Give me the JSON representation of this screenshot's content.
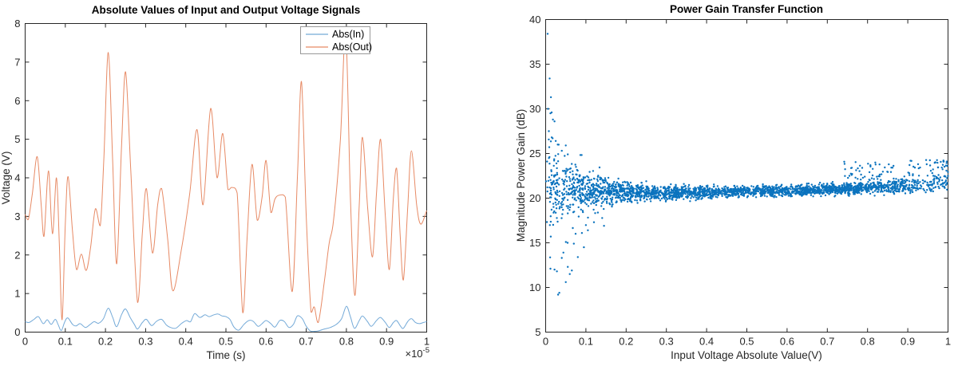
{
  "figure": {
    "background": "#ffffff",
    "axis_color": "#262626",
    "legend_border_color": "#999999"
  },
  "chart_data": [
    {
      "type": "line",
      "title": "Absolute Values of Input and Output Voltage Signals",
      "xlabel": "Time (s)",
      "ylabel": "Voltage (V)",
      "x_multiplier_base": "×10",
      "x_multiplier_exp": "-5",
      "xlim": [
        0,
        1
      ],
      "ylim": [
        0,
        8
      ],
      "x_ticks": {
        "values": [
          0,
          0.1,
          0.2,
          0.3,
          0.4,
          0.5,
          0.6,
          0.7,
          0.8,
          0.9,
          1
        ],
        "labels": [
          "0",
          "0.1",
          "0.2",
          "0.3",
          "0.4",
          "0.5",
          "0.6",
          "0.7",
          "0.8",
          "0.9",
          "1"
        ]
      },
      "y_ticks": {
        "values": [
          0,
          1,
          2,
          3,
          4,
          5,
          6,
          7,
          8
        ],
        "labels": [
          "0",
          "1",
          "2",
          "3",
          "4",
          "5",
          "6",
          "7",
          "8"
        ]
      },
      "grid": false,
      "legend": {
        "position": "northeast",
        "entries": [
          "Abs(In)",
          "Abs(Out)"
        ]
      },
      "series": [
        {
          "name": "Abs(In)",
          "color": "#74AAD8",
          "points": [
            [
              0,
              0.27
            ],
            [
              0.01,
              0.25
            ],
            [
              0.022,
              0.33
            ],
            [
              0.033,
              0.4
            ],
            [
              0.045,
              0.22
            ],
            [
              0.055,
              0.32
            ],
            [
              0.065,
              0.2
            ],
            [
              0.075,
              0.33
            ],
            [
              0.082,
              0.2
            ],
            [
              0.09,
              0.04
            ],
            [
              0.098,
              0.25
            ],
            [
              0.106,
              0.37
            ],
            [
              0.118,
              0.2
            ],
            [
              0.127,
              0.16
            ],
            [
              0.137,
              0.22
            ],
            [
              0.15,
              0.12
            ],
            [
              0.162,
              0.2
            ],
            [
              0.172,
              0.27
            ],
            [
              0.183,
              0.23
            ],
            [
              0.195,
              0.35
            ],
            [
              0.207,
              0.62
            ],
            [
              0.218,
              0.38
            ],
            [
              0.228,
              0.14
            ],
            [
              0.24,
              0.45
            ],
            [
              0.25,
              0.6
            ],
            [
              0.262,
              0.37
            ],
            [
              0.272,
              0.2
            ],
            [
              0.28,
              0.08
            ],
            [
              0.292,
              0.25
            ],
            [
              0.302,
              0.33
            ],
            [
              0.315,
              0.17
            ],
            [
              0.327,
              0.28
            ],
            [
              0.34,
              0.33
            ],
            [
              0.352,
              0.18
            ],
            [
              0.362,
              0.12
            ],
            [
              0.375,
              0.1
            ],
            [
              0.39,
              0.23
            ],
            [
              0.402,
              0.3
            ],
            [
              0.412,
              0.27
            ],
            [
              0.422,
              0.48
            ],
            [
              0.435,
              0.38
            ],
            [
              0.448,
              0.45
            ],
            [
              0.458,
              0.4
            ],
            [
              0.468,
              0.44
            ],
            [
              0.48,
              0.47
            ],
            [
              0.49,
              0.42
            ],
            [
              0.5,
              0.4
            ],
            [
              0.51,
              0.33
            ],
            [
              0.52,
              0.13
            ],
            [
              0.532,
              0.05
            ],
            [
              0.545,
              0.2
            ],
            [
              0.557,
              0.3
            ],
            [
              0.568,
              0.28
            ],
            [
              0.58,
              0.15
            ],
            [
              0.59,
              0.22
            ],
            [
              0.6,
              0.3
            ],
            [
              0.612,
              0.22
            ],
            [
              0.622,
              0.13
            ],
            [
              0.634,
              0.3
            ],
            [
              0.645,
              0.28
            ],
            [
              0.657,
              0.12
            ],
            [
              0.668,
              0.2
            ],
            [
              0.678,
              0.42
            ],
            [
              0.69,
              0.35
            ],
            [
              0.7,
              0.15
            ],
            [
              0.71,
              0.03
            ],
            [
              0.72,
              0.02
            ],
            [
              0.73,
              0.03
            ],
            [
              0.745,
              0.08
            ],
            [
              0.76,
              0.12
            ],
            [
              0.775,
              0.2
            ],
            [
              0.788,
              0.35
            ],
            [
              0.8,
              0.67
            ],
            [
              0.81,
              0.4
            ],
            [
              0.82,
              0.1
            ],
            [
              0.832,
              0.3
            ],
            [
              0.84,
              0.42
            ],
            [
              0.852,
              0.28
            ],
            [
              0.862,
              0.15
            ],
            [
              0.875,
              0.3
            ],
            [
              0.885,
              0.38
            ],
            [
              0.897,
              0.25
            ],
            [
              0.907,
              0.12
            ],
            [
              0.917,
              0.25
            ],
            [
              0.925,
              0.3
            ],
            [
              0.935,
              0.15
            ],
            [
              0.942,
              0.1
            ],
            [
              0.953,
              0.28
            ],
            [
              0.962,
              0.35
            ],
            [
              0.972,
              0.25
            ],
            [
              0.982,
              0.22
            ],
            [
              0.992,
              0.25
            ],
            [
              1,
              0.27
            ]
          ]
        },
        {
          "name": "Abs(Out)",
          "color": "#E78A65",
          "points": [
            [
              0,
              3.05
            ],
            [
              0.008,
              2.92
            ],
            [
              0.018,
              3.6
            ],
            [
              0.03,
              4.55
            ],
            [
              0.04,
              3.3
            ],
            [
              0.047,
              2.48
            ],
            [
              0.058,
              4.18
            ],
            [
              0.068,
              2.55
            ],
            [
              0.078,
              4.0
            ],
            [
              0.085,
              2.3
            ],
            [
              0.092,
              0.32
            ],
            [
              0.1,
              2.8
            ],
            [
              0.107,
              4.03
            ],
            [
              0.118,
              2.6
            ],
            [
              0.128,
              1.62
            ],
            [
              0.14,
              2.02
            ],
            [
              0.152,
              1.6
            ],
            [
              0.163,
              2.2
            ],
            [
              0.175,
              3.2
            ],
            [
              0.187,
              2.76
            ],
            [
              0.196,
              4.5
            ],
            [
              0.207,
              7.25
            ],
            [
              0.218,
              4.4
            ],
            [
              0.228,
              1.77
            ],
            [
              0.24,
              4.8
            ],
            [
              0.25,
              6.75
            ],
            [
              0.263,
              4.2
            ],
            [
              0.28,
              0.77
            ],
            [
              0.292,
              2.6
            ],
            [
              0.302,
              3.72
            ],
            [
              0.317,
              2.05
            ],
            [
              0.33,
              3.3
            ],
            [
              0.34,
              3.72
            ],
            [
              0.355,
              2.4
            ],
            [
              0.368,
              1.07
            ],
            [
              0.39,
              2.2
            ],
            [
              0.41,
              3.6
            ],
            [
              0.428,
              5.25
            ],
            [
              0.443,
              3.3
            ],
            [
              0.462,
              5.8
            ],
            [
              0.478,
              4.0
            ],
            [
              0.492,
              5.15
            ],
            [
              0.505,
              3.7
            ],
            [
              0.515,
              3.75
            ],
            [
              0.528,
              3.6
            ],
            [
              0.542,
              0.5
            ],
            [
              0.553,
              2.5
            ],
            [
              0.565,
              4.35
            ],
            [
              0.578,
              2.9
            ],
            [
              0.59,
              3.5
            ],
            [
              0.6,
              4.45
            ],
            [
              0.612,
              3.1
            ],
            [
              0.622,
              3.45
            ],
            [
              0.633,
              3.55
            ],
            [
              0.648,
              3.5
            ],
            [
              0.665,
              1.05
            ],
            [
              0.678,
              4.0
            ],
            [
              0.688,
              6.5
            ],
            [
              0.7,
              3.0
            ],
            [
              0.712,
              0.52
            ],
            [
              0.72,
              0.65
            ],
            [
              0.73,
              0.25
            ],
            [
              0.745,
              1.3
            ],
            [
              0.757,
              2.3
            ],
            [
              0.768,
              2.9
            ],
            [
              0.785,
              5.0
            ],
            [
              0.798,
              7.85
            ],
            [
              0.81,
              3.5
            ],
            [
              0.821,
              0.95
            ],
            [
              0.832,
              3.3
            ],
            [
              0.84,
              5.05
            ],
            [
              0.853,
              3.2
            ],
            [
              0.865,
              1.95
            ],
            [
              0.875,
              3.6
            ],
            [
              0.885,
              5.0
            ],
            [
              0.897,
              3.0
            ],
            [
              0.907,
              1.62
            ],
            [
              0.917,
              3.5
            ],
            [
              0.925,
              4.25
            ],
            [
              0.934,
              2.5
            ],
            [
              0.942,
              1.35
            ],
            [
              0.953,
              3.3
            ],
            [
              0.962,
              4.7
            ],
            [
              0.975,
              3.3
            ],
            [
              0.985,
              2.8
            ],
            [
              1,
              3.15
            ]
          ]
        }
      ]
    },
    {
      "type": "scatter",
      "title": "Power Gain Transfer Function",
      "xlabel": "Input Voltage Absolute Value(V)",
      "ylabel": "Magnitude Power Gain (dB)",
      "xlim": [
        0,
        1
      ],
      "ylim": [
        5,
        40
      ],
      "x_ticks": {
        "values": [
          0,
          0.1,
          0.2,
          0.3,
          0.4,
          0.5,
          0.6,
          0.7,
          0.8,
          0.9,
          1
        ],
        "labels": [
          "0",
          "0.1",
          "0.2",
          "0.3",
          "0.4",
          "0.5",
          "0.6",
          "0.7",
          "0.8",
          "0.9",
          "1"
        ]
      },
      "y_ticks": {
        "values": [
          5,
          10,
          15,
          20,
          25,
          30,
          35,
          40
        ],
        "labels": [
          "5",
          "10",
          "15",
          "20",
          "25",
          "30",
          "35",
          "40"
        ]
      },
      "grid": false,
      "marker_color": "#0B73BE",
      "marker_radius_px": 1.2,
      "scatter_spec": {
        "seed": 1337,
        "n_band": 2600,
        "n_upper_tail": 130,
        "x_taper_start": 0.74,
        "band_center": [
          [
            0,
            21.8
          ],
          [
            0.05,
            21.2
          ],
          [
            0.1,
            20.9
          ],
          [
            0.2,
            20.7
          ],
          [
            0.3,
            20.6
          ],
          [
            0.4,
            20.65
          ],
          [
            0.5,
            20.75
          ],
          [
            0.6,
            20.85
          ],
          [
            0.7,
            21.0
          ],
          [
            0.8,
            21.1
          ],
          [
            0.9,
            21.35
          ],
          [
            1,
            21.9
          ]
        ],
        "band_halfwidth": [
          [
            0,
            4.5
          ],
          [
            0.02,
            3.6
          ],
          [
            0.05,
            2.8
          ],
          [
            0.08,
            2.1
          ],
          [
            0.1,
            1.7
          ],
          [
            0.15,
            1.25
          ],
          [
            0.2,
            1.0
          ],
          [
            0.25,
            0.8
          ],
          [
            0.3,
            0.65
          ],
          [
            0.4,
            0.55
          ],
          [
            0.5,
            0.5
          ],
          [
            0.7,
            0.5
          ],
          [
            0.8,
            0.55
          ],
          [
            0.9,
            0.65
          ],
          [
            1,
            0.8
          ]
        ],
        "outliers": [
          [
            0.005,
            38.4
          ],
          [
            0.01,
            33.4
          ],
          [
            0.013,
            31.3
          ],
          [
            0.006,
            30.0
          ],
          [
            0.012,
            29.5
          ],
          [
            0.018,
            28.8
          ],
          [
            0.022,
            28.6
          ],
          [
            0.008,
            27.5
          ],
          [
            0.015,
            26.8
          ],
          [
            0.025,
            26.4
          ],
          [
            0.03,
            26.0
          ],
          [
            0.04,
            25.3
          ],
          [
            0.05,
            25.9
          ],
          [
            0.055,
            24.9
          ],
          [
            0.012,
            12.1
          ],
          [
            0.022,
            12.0
          ],
          [
            0.028,
            11.8
          ],
          [
            0.031,
            9.2
          ],
          [
            0.034,
            9.4
          ],
          [
            0.04,
            13.3
          ],
          [
            0.044,
            13.9
          ],
          [
            0.05,
            10.6
          ],
          [
            0.055,
            12.3
          ],
          [
            0.06,
            11.5
          ],
          [
            0.065,
            11.9
          ],
          [
            0.07,
            14.9
          ],
          [
            0.08,
            13.4
          ],
          [
            0.095,
            14.5
          ],
          [
            0.09,
            16.1
          ],
          [
            0.105,
            16.4
          ],
          [
            0.12,
            17.3
          ],
          [
            0.145,
            16.9
          ]
        ],
        "y_clamp": [
          5.3,
          39.2
        ],
        "upper_tail_max": 24.4
      }
    }
  ]
}
